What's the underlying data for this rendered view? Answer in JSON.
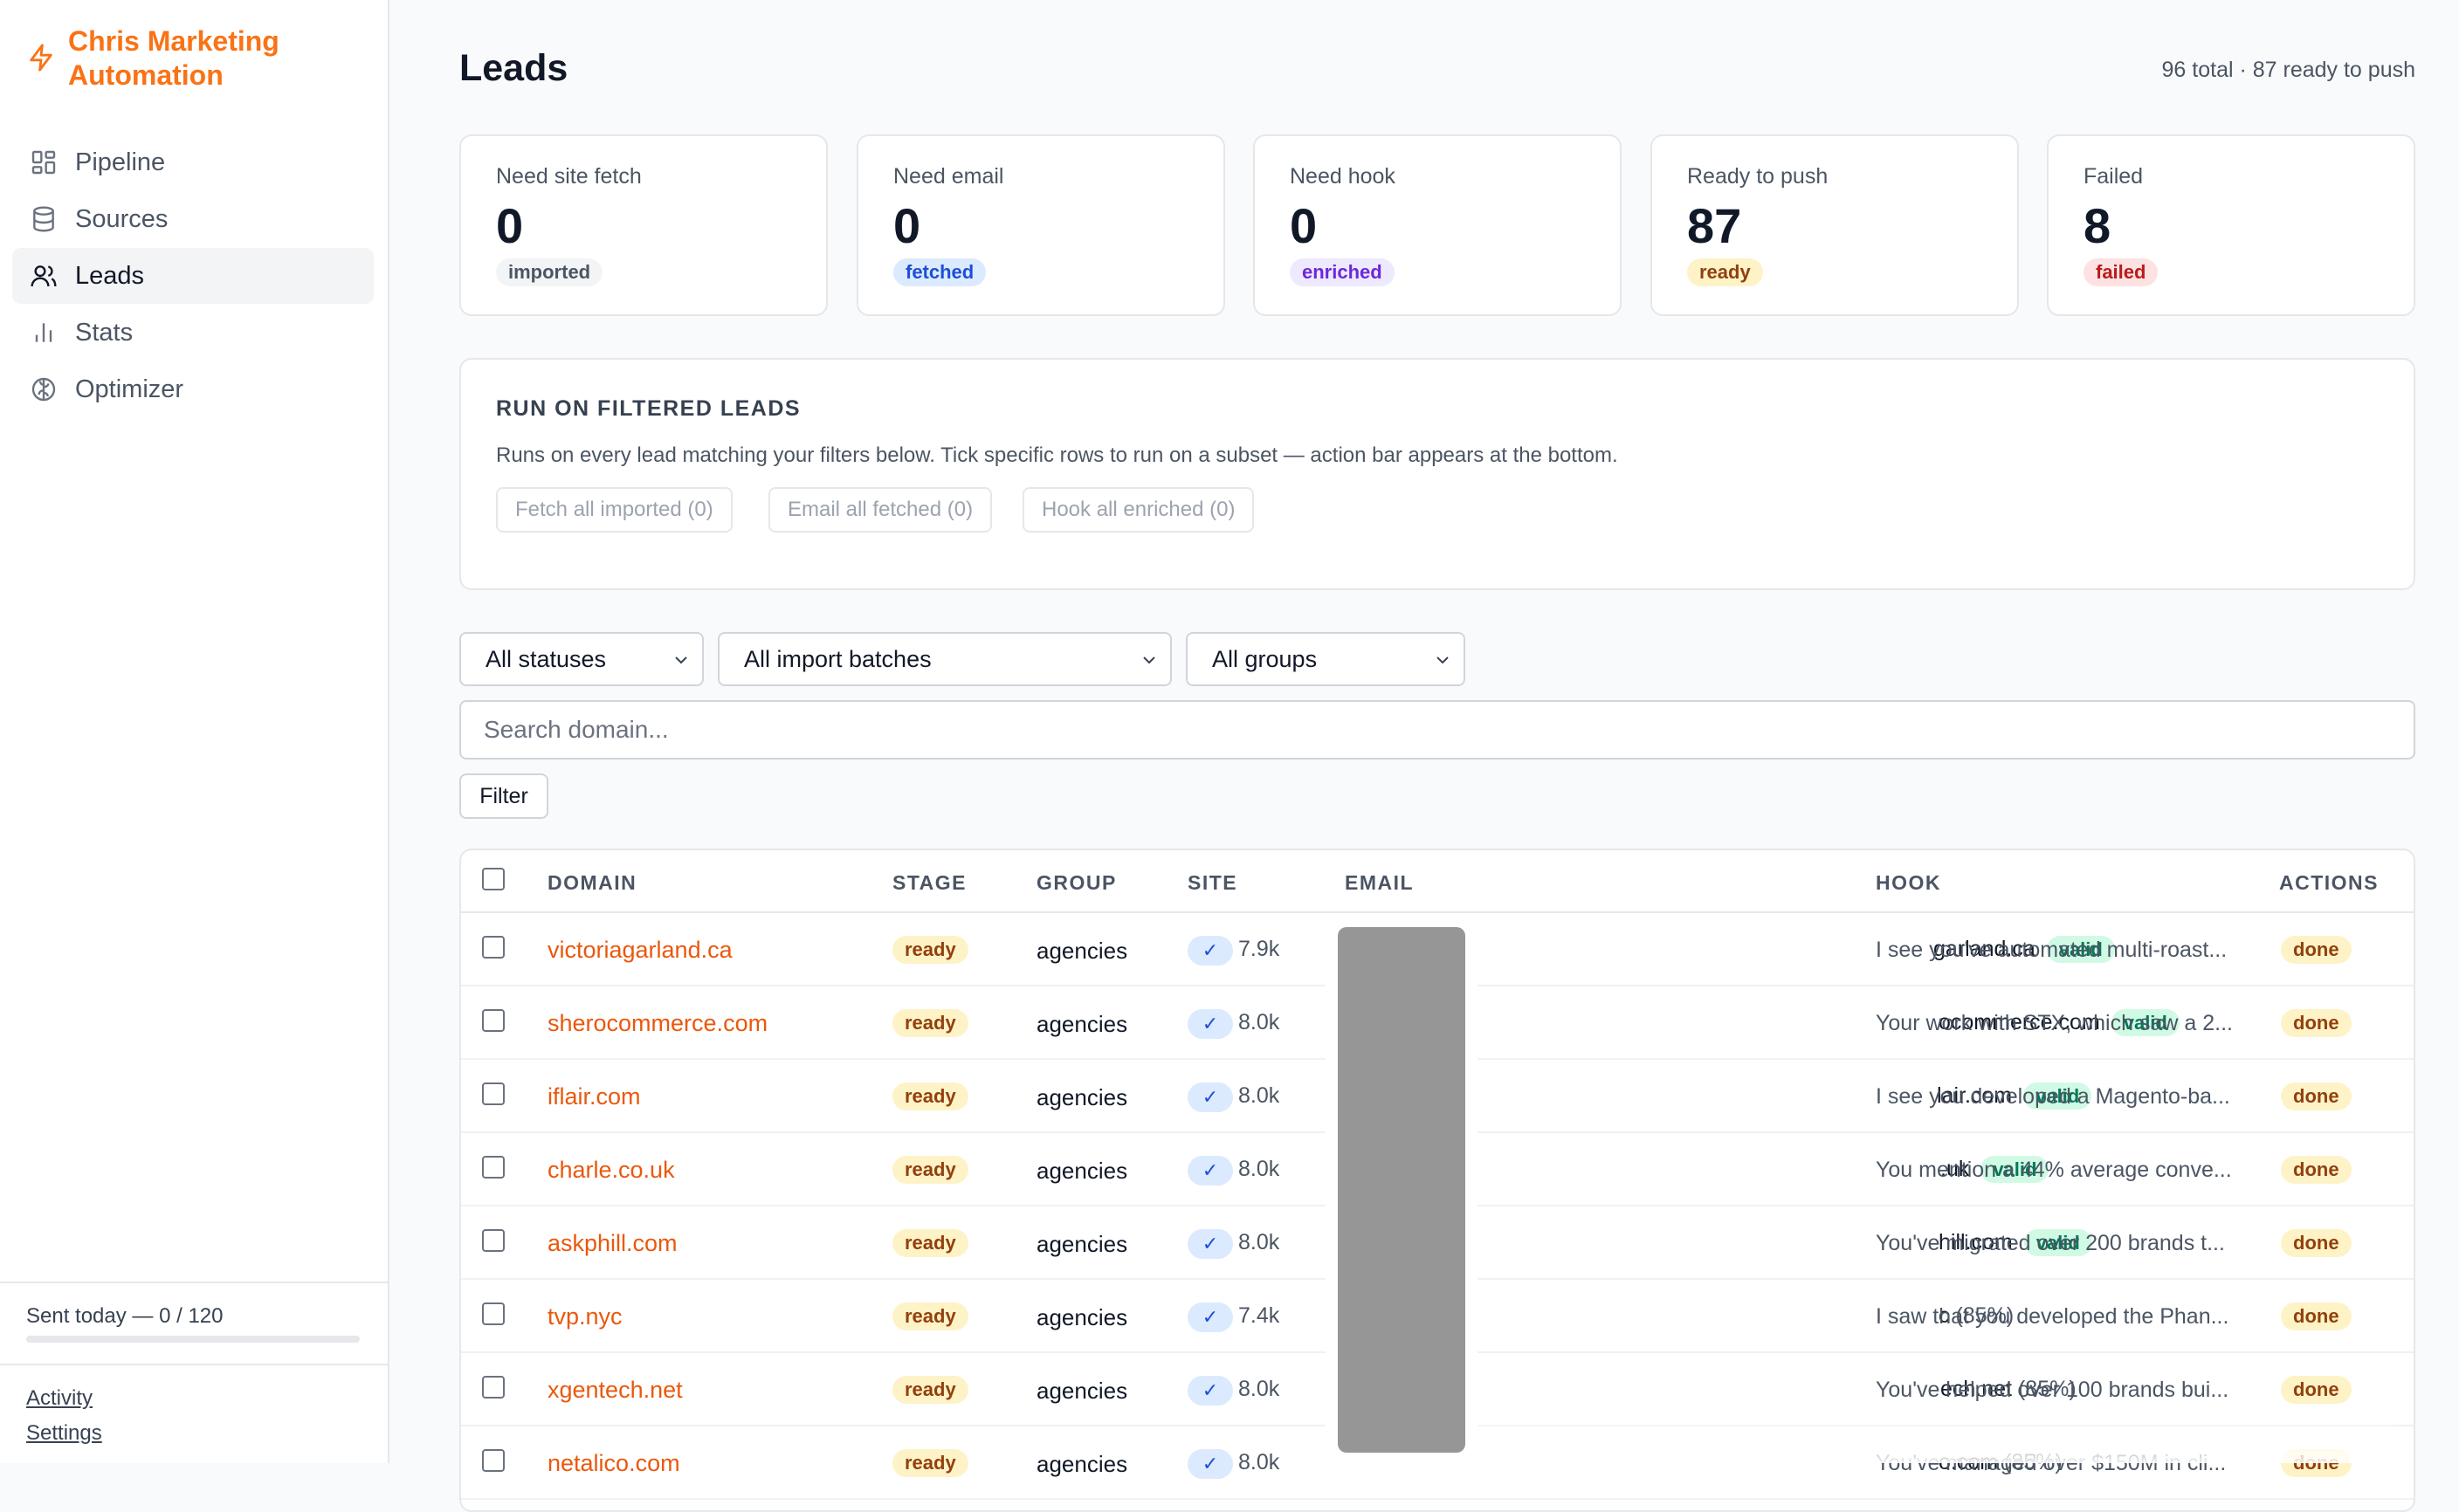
{
  "app": {
    "name": "Chris Marketing Automation",
    "icon": "bolt-icon",
    "accent_color": "#f97316"
  },
  "sidebar": {
    "items": [
      {
        "label": "Pipeline",
        "icon": "grid-icon",
        "active": false
      },
      {
        "label": "Sources",
        "icon": "database-icon",
        "active": false
      },
      {
        "label": "Leads",
        "icon": "users-icon",
        "active": true
      },
      {
        "label": "Stats",
        "icon": "bar-chart-icon",
        "active": false
      },
      {
        "label": "Optimizer",
        "icon": "brain-icon",
        "active": false
      }
    ],
    "sent_today": "Sent today — 0 / 120",
    "sent_progress": 0,
    "footer_links": [
      "Activity",
      "Settings"
    ]
  },
  "page": {
    "title": "Leads",
    "meta": "96 total · 87 ready to push"
  },
  "stats": [
    {
      "label": "Need site fetch",
      "value": "0",
      "badge": "imported",
      "color": "gray"
    },
    {
      "label": "Need email",
      "value": "0",
      "badge": "fetched",
      "color": "blue"
    },
    {
      "label": "Need hook",
      "value": "0",
      "badge": "enriched",
      "color": "purple"
    },
    {
      "label": "Ready to push",
      "value": "87",
      "badge": "ready",
      "color": "yellow"
    },
    {
      "label": "Failed",
      "value": "8",
      "badge": "failed",
      "color": "red"
    }
  ],
  "run_panel": {
    "title": "RUN ON FILTERED LEADS",
    "description": "Runs on every lead matching your filters below. Tick specific rows to run on a subset — action bar appears at the bottom.",
    "buttons": [
      "Fetch all imported (0)",
      "Email all fetched (0)",
      "Hook all enriched (0)"
    ]
  },
  "filters": {
    "status": "All statuses",
    "batch": "All import batches",
    "group": "All groups",
    "search_placeholder": "Search domain...",
    "filter_button": "Filter"
  },
  "table": {
    "columns": [
      "DOMAIN",
      "STAGE",
      "GROUP",
      "SITE",
      "EMAIL",
      "HOOK",
      "ACTIONS"
    ],
    "rows": [
      {
        "domain": "victoriagarland.ca",
        "stage": "ready",
        "group": "agencies",
        "site_check": "✓",
        "site_count": "7.9k",
        "email": "garland.ca",
        "email_status": "valid",
        "hook": "I see you've automated multi-roast...",
        "action": "done"
      },
      {
        "domain": "sherocommerce.com",
        "stage": "ready",
        "group": "agencies",
        "site_check": "✓",
        "site_count": "8.0k",
        "email": "ocommerce.com",
        "email_status": "valid",
        "hook": "Your work with STX, which saw a 2...",
        "action": "done"
      },
      {
        "domain": "iflair.com",
        "stage": "ready",
        "group": "agencies",
        "site_check": "✓",
        "site_count": "8.0k",
        "email": "lair.com",
        "email_status": "valid",
        "hook": "I see you developed a Magento-ba...",
        "action": "done"
      },
      {
        "domain": "charle.co.uk",
        "stage": "ready",
        "group": "agencies",
        "site_check": "✓",
        "site_count": "8.0k",
        "email": ".uk",
        "email_status": "valid",
        "hook": "You mention a 44% average conve...",
        "action": "done"
      },
      {
        "domain": "askphill.com",
        "stage": "ready",
        "group": "agencies",
        "site_check": "✓",
        "site_count": "8.0k",
        "email": "hill.com",
        "email_status": "valid",
        "hook": "You've migrated over 200 brands t...",
        "action": "done"
      },
      {
        "domain": "tvp.nyc",
        "stage": "ready",
        "group": "agencies",
        "site_check": "✓",
        "site_count": "7.4k",
        "email": "c",
        "email_status": "(85%)",
        "hook": "I saw that you developed the Phan...",
        "action": "done"
      },
      {
        "domain": "xgentech.net",
        "stage": "ready",
        "group": "agencies",
        "site_check": "✓",
        "site_count": "8.0k",
        "email": "ech.net",
        "email_status": "(85%)",
        "hook": "You've helped over 100 brands bui...",
        "action": "done"
      },
      {
        "domain": "netalico.com",
        "stage": "ready",
        "group": "agencies",
        "site_check": "✓",
        "site_count": "8.0k",
        "email": "o.com",
        "email_status": "(85%)",
        "hook": "You've managed over $150M in cli...",
        "action": "done"
      }
    ]
  }
}
